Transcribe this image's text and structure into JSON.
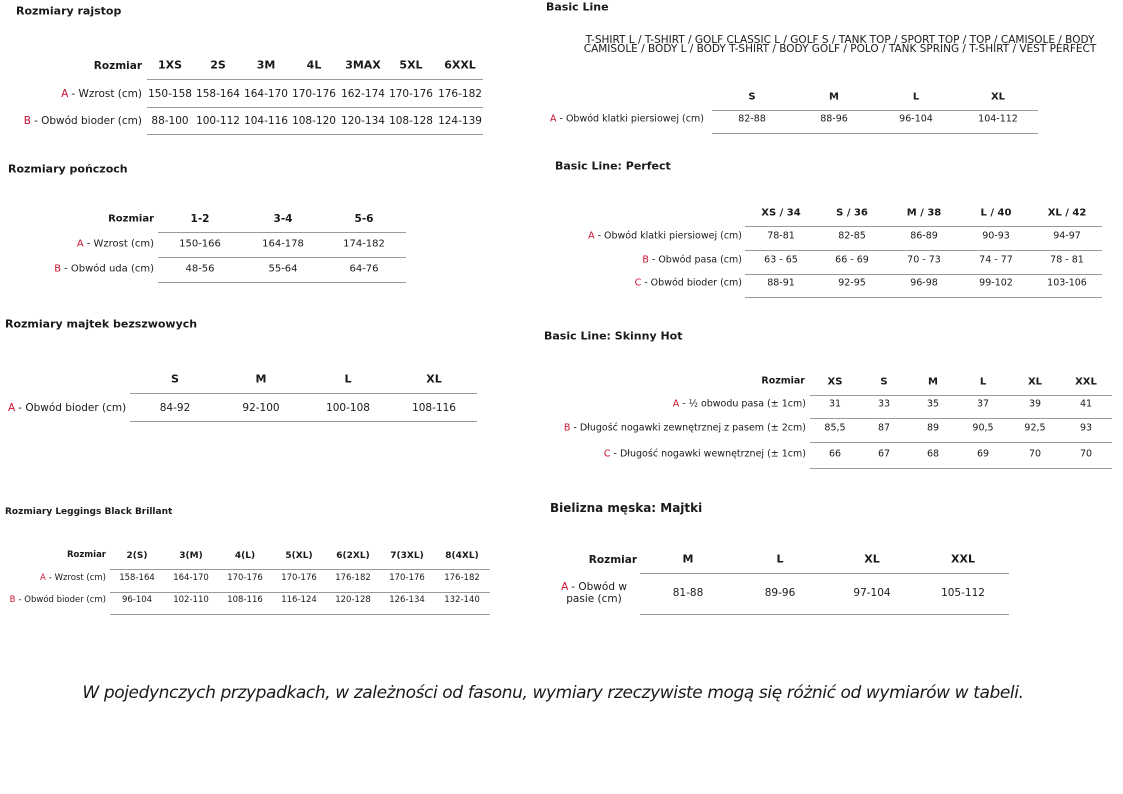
{
  "tables": [
    {
      "title": "Rozmiary rajstop",
      "corner": "Rozmiar",
      "columns": [
        "1XS",
        "2S",
        "3M",
        "4L",
        "3MAX",
        "5XL",
        "6XXL"
      ],
      "rows": [
        {
          "letter": "A",
          "label": "- Wzrost (cm)",
          "cells": [
            "150-158",
            "158-164",
            "164-170",
            "170-176",
            "162-174",
            "170-176",
            "176-182"
          ]
        },
        {
          "letter": "B",
          "label": "- Obwód bioder (cm)",
          "cells": [
            "88-100",
            "100-112",
            "104-116",
            "108-120",
            "120-134",
            "108-128",
            "124-139"
          ]
        }
      ]
    },
    {
      "title": "Rozmiary pończoch",
      "corner": "Rozmiar",
      "columns": [
        "1-2",
        "3-4",
        "5-6"
      ],
      "rows": [
        {
          "letter": "A",
          "label": "- Wzrost (cm)",
          "cells": [
            "150-166",
            "164-178",
            "174-182"
          ]
        },
        {
          "letter": "B",
          "label": "- Obwód uda (cm)",
          "cells": [
            "48-56",
            "55-64",
            "64-76"
          ]
        }
      ]
    },
    {
      "title": "Rozmiary majtek bezszwowych",
      "columns": [
        "S",
        "M",
        "L",
        "XL"
      ],
      "rows": [
        {
          "letter": "A",
          "label": "- Obwód bioder (cm)",
          "cells": [
            "84-92",
            "92-100",
            "100-108",
            "108-116"
          ]
        }
      ]
    },
    {
      "title": "Rozmiary Leggings Black Brillant",
      "corner": "Rozmiar",
      "columns": [
        "2(S)",
        "3(M)",
        "4(L)",
        "5(XL)",
        "6(2XL)",
        "7(3XL)",
        "8(4XL)"
      ],
      "rows": [
        {
          "letter": "A",
          "label": "- Wzrost (cm)",
          "cells": [
            "158-164",
            "164-170",
            "170-176",
            "170-176",
            "176-182",
            "170-176",
            "176-182"
          ]
        },
        {
          "letter": "B",
          "label": "- Obwód bioder (cm)",
          "cells": [
            "96-104",
            "102-110",
            "108-116",
            "116-124",
            "120-128",
            "126-134",
            "132-140"
          ]
        }
      ]
    },
    {
      "title": "Basic Line",
      "subtitle_lines": [
        "T-SHIRT L / T-SHIRT / GOLF CLASSIC L / GOLF S / TANK TOP / SPORT TOP / TOP / CAMISOLE / BODY",
        "CAMISOLE / BODY L / BODY T-SHIRT / BODY GOLF / POLO / TANK SPRING / T-SHIRT / VEST PERFECT"
      ],
      "columns": [
        "S",
        "M",
        "L",
        "XL"
      ],
      "rows": [
        {
          "letter": "A",
          "label": "- Obwód klatki piersiowej (cm)",
          "cells": [
            "82-88",
            "88-96",
            "96-104",
            "104-112"
          ]
        }
      ]
    },
    {
      "title": "Basic Line: Perfect",
      "columns": [
        "XS / 34",
        "S / 36",
        "M / 38",
        "L / 40",
        "XL / 42"
      ],
      "rows": [
        {
          "letter": "A",
          "label": "- Obwód klatki piersiowej (cm)",
          "cells": [
            "78-81",
            "82-85",
            "86-89",
            "90-93",
            "94-97"
          ]
        },
        {
          "letter": "B",
          "label": "- Obwód pasa (cm)",
          "cells": [
            "63 - 65",
            "66 - 69",
            "70 - 73",
            "74 - 77",
            "78 - 81"
          ]
        },
        {
          "letter": "C",
          "label": "- Obwód bioder (cm)",
          "cells": [
            "88-91",
            "92-95",
            "96-98",
            "99-102",
            "103-106"
          ]
        }
      ]
    },
    {
      "title": "Basic Line: Skinny Hot",
      "corner": "Rozmiar",
      "columns": [
        "XS",
        "S",
        "M",
        "L",
        "XL",
        "XXL"
      ],
      "rows": [
        {
          "letter": "A",
          "label": "- ½ obwodu pasa (± 1cm)",
          "cells": [
            "31",
            "33",
            "35",
            "37",
            "39",
            "41"
          ]
        },
        {
          "letter": "B",
          "label": "- Długość nogawki zewnętrznej z pasem (± 2cm)",
          "cells": [
            "85,5",
            "87",
            "89",
            "90,5",
            "92,5",
            "93"
          ]
        },
        {
          "letter": "C",
          "label": "- Długość nogawki wewnętrznej (± 1cm)",
          "cells": [
            "66",
            "67",
            "68",
            "69",
            "70",
            "70"
          ]
        }
      ]
    },
    {
      "title": "Bielizna męska: Majtki",
      "corner": "Rozmiar",
      "columns": [
        "M",
        "L",
        "XL",
        "XXL"
      ],
      "rows": [
        {
          "letter": "A",
          "label": "- Obwód w pasie (cm)",
          "cells": [
            "81-88",
            "89-96",
            "97-104",
            "105-112"
          ]
        }
      ]
    }
  ],
  "footer": "W pojedynczych przypadkach, w zależności od fasonu, wymiary rzeczywiste mogą się różnić od wymiarów w tabeli."
}
